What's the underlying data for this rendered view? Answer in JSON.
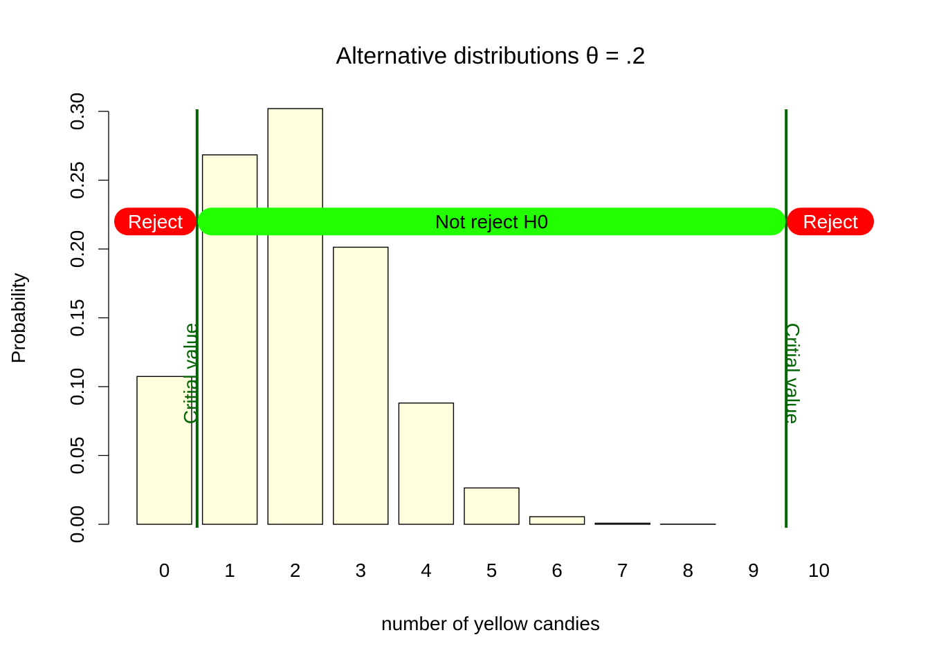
{
  "chart_data": {
    "type": "bar",
    "title": "Alternative distributions θ = .2",
    "xlabel": "number of yellow candies",
    "ylabel": "Probability",
    "ylim": [
      0,
      0.3
    ],
    "yticks": [
      "0.00",
      "0.05",
      "0.10",
      "0.15",
      "0.20",
      "0.25",
      "0.30"
    ],
    "categories": [
      "0",
      "1",
      "2",
      "3",
      "4",
      "5",
      "6",
      "7",
      "8",
      "9",
      "10"
    ],
    "values": [
      0.1074,
      0.2684,
      0.302,
      0.2013,
      0.0881,
      0.0264,
      0.0055,
      0.0008,
      0.0001,
      0.0,
      0.0
    ],
    "bar_color": "#FFFFDD",
    "critical_values": [
      {
        "position_between": [
          0,
          1
        ],
        "label": "Critial value"
      },
      {
        "position_between": [
          9,
          10
        ],
        "label": "Critial value"
      }
    ],
    "regions": [
      {
        "label": "Reject",
        "color": "#FF0000",
        "text_color": "#FFFFFF"
      },
      {
        "label": "Not reject H0",
        "color": "#22FF00",
        "text_color": "#000000"
      },
      {
        "label": "Reject",
        "color": "#FF0000",
        "text_color": "#FFFFFF"
      }
    ],
    "region_y": 0.22,
    "line_color": "#006400"
  }
}
